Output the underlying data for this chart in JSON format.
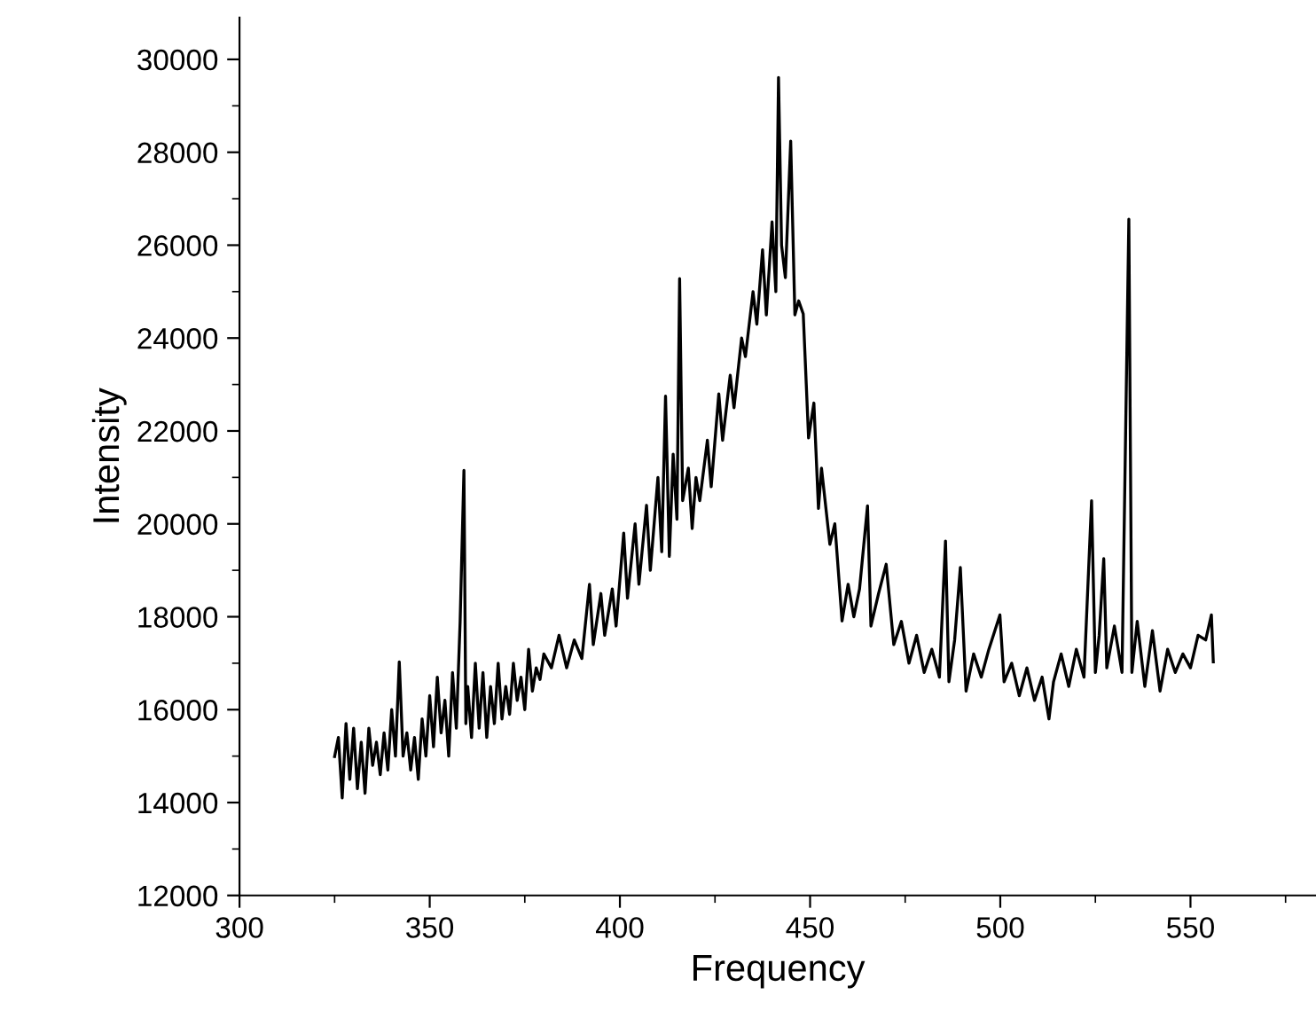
{
  "chart_data": {
    "type": "line",
    "xlabel": "Frequency",
    "ylabel": "Intensity",
    "xlim": [
      300,
      583
    ],
    "xticks": [
      300,
      350,
      400,
      450,
      500,
      550
    ],
    "ylim": [
      12000,
      30900
    ],
    "yticks": [
      12000,
      14000,
      16000,
      18000,
      20000,
      22000,
      24000,
      26000,
      28000,
      30000
    ],
    "grid": false,
    "legend": false,
    "marker": "none",
    "line_style": "solid",
    "series": [
      {
        "color": "#000000",
        "x": [
          325,
          326,
          327,
          328,
          329,
          330,
          331,
          332,
          333,
          334,
          335,
          336,
          337,
          338,
          339,
          340,
          341,
          342,
          343,
          344,
          345,
          346,
          347,
          348,
          349,
          350,
          351,
          352,
          353,
          354,
          355,
          356,
          357,
          358,
          359,
          359.5,
          360,
          361,
          362,
          363,
          364,
          365,
          366,
          367,
          368,
          369,
          370,
          371,
          372,
          373,
          374,
          375,
          376,
          377,
          378,
          379,
          380,
          382,
          384,
          386,
          388,
          390,
          392,
          393,
          395,
          396,
          398,
          399,
          401,
          402,
          404,
          405,
          407,
          408,
          410,
          411,
          412,
          413,
          414,
          415,
          415.7,
          416.5,
          418,
          419,
          420,
          421,
          423,
          424,
          426,
          427,
          429,
          430,
          432,
          433,
          435,
          436,
          437.5,
          438.5,
          440,
          441,
          441.7,
          442.5,
          443.5,
          444.9,
          446,
          447,
          448.2,
          449,
          449.6,
          451,
          452.2,
          453,
          455.2,
          456.5,
          458.4,
          460,
          461.5,
          463,
          465.1,
          466,
          468,
          470,
          472,
          474,
          476,
          478,
          480,
          482,
          484,
          485.6,
          486.5,
          488,
          489.5,
          491,
          493,
          495,
          497,
          499.9,
          501,
          503,
          505,
          507,
          509,
          511,
          512.8,
          514,
          516,
          518,
          520,
          522,
          524,
          525,
          526,
          527.2,
          528,
          530,
          532,
          533.8,
          534.6,
          536,
          538,
          540,
          542,
          544,
          546,
          548,
          550,
          552,
          554,
          555.5,
          556
        ],
        "values": [
          14990,
          15400,
          14100,
          15700,
          14500,
          15600,
          14300,
          15300,
          14200,
          15600,
          14800,
          15300,
          14600,
          15500,
          14700,
          16000,
          15000,
          17030,
          15000,
          15500,
          14700,
          15400,
          14500,
          15800,
          15000,
          16300,
          15200,
          16700,
          15500,
          16200,
          15000,
          16800,
          15600,
          17900,
          21150,
          15700,
          16500,
          15400,
          17000,
          15600,
          16800,
          15400,
          16500,
          15700,
          17000,
          15800,
          16500,
          15900,
          17000,
          16200,
          16700,
          16000,
          17300,
          16400,
          16900,
          16650,
          17200,
          16900,
          17600,
          16900,
          17500,
          17100,
          18700,
          17400,
          18500,
          17600,
          18600,
          17800,
          19800,
          18400,
          20000,
          18700,
          20400,
          19000,
          21000,
          19400,
          22750,
          19300,
          21500,
          20100,
          25280,
          20500,
          21200,
          19900,
          21000,
          20500,
          21800,
          20800,
          22800,
          21800,
          23200,
          22500,
          24000,
          23600,
          25000,
          24300,
          25900,
          24500,
          26500,
          25000,
          29610,
          26000,
          25300,
          28240,
          24500,
          24800,
          24520,
          23000,
          21850,
          22600,
          20330,
          21200,
          19560,
          20000,
          17910,
          18700,
          18000,
          18600,
          20390,
          17800,
          18500,
          19130,
          17400,
          17900,
          17000,
          17600,
          16800,
          17300,
          16700,
          19630,
          16600,
          17500,
          19060,
          16400,
          17200,
          16700,
          17300,
          18040,
          16600,
          17000,
          16300,
          16900,
          16200,
          16700,
          15800,
          16600,
          17200,
          16500,
          17300,
          16700,
          20500,
          16800,
          17600,
          19250,
          16900,
          17800,
          16800,
          26560,
          16800,
          17900,
          16500,
          17700,
          16400,
          17300,
          16800,
          17200,
          16900,
          17600,
          17500,
          18040,
          17030
        ]
      }
    ]
  }
}
